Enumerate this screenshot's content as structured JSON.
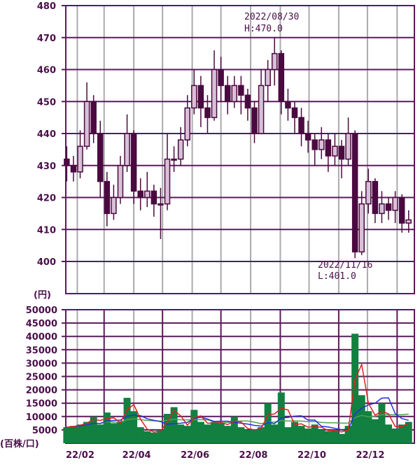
{
  "chart_data": [
    {
      "type": "candlestick",
      "ylabel": "(円)",
      "ylim": [
        390,
        480
      ],
      "y_ticks": [
        "400",
        "410",
        "420",
        "430",
        "440",
        "450",
        "460",
        "470",
        "480"
      ],
      "grid": true,
      "colors": {
        "grid_h": "#5a1a5a",
        "grid_v": "#aaaaaa",
        "candle": "#4a0a40",
        "candle_up_fill": "#d8c0d6"
      },
      "dates": [
        "2022-01-21",
        "2022-01-28",
        "2022-02-04",
        "2022-02-11",
        "2022-02-18",
        "2022-02-25",
        "2022-03-04",
        "2022-03-11",
        "2022-03-18",
        "2022-03-25",
        "2022-04-01",
        "2022-04-08",
        "2022-04-15",
        "2022-04-22",
        "2022-04-29",
        "2022-05-06",
        "2022-05-13",
        "2022-05-20",
        "2022-05-27",
        "2022-06-03",
        "2022-06-10",
        "2022-06-17",
        "2022-06-24",
        "2022-07-01",
        "2022-07-08",
        "2022-07-15",
        "2022-07-22",
        "2022-07-29",
        "2022-08-05",
        "2022-08-12",
        "2022-08-19",
        "2022-08-26",
        "2022-09-02",
        "2022-09-09",
        "2022-09-16",
        "2022-09-23",
        "2022-09-30",
        "2022-10-07",
        "2022-10-14",
        "2022-10-21",
        "2022-10-28",
        "2022-11-04",
        "2022-11-11",
        "2022-11-18",
        "2022-11-25",
        "2022-12-02",
        "2022-12-09",
        "2022-12-16",
        "2022-12-23",
        "2022-12-30",
        "2023-01-06",
        "2023-01-13"
      ],
      "open": [
        432,
        430,
        428,
        436,
        450,
        440,
        425,
        415,
        420,
        430,
        440,
        422,
        420,
        422,
        418,
        418,
        432,
        432,
        438,
        448,
        455,
        448,
        445,
        460,
        455,
        450,
        455,
        452,
        448,
        440,
        455,
        460,
        465,
        450,
        448,
        445,
        440,
        438,
        435,
        438,
        433,
        436,
        432,
        440,
        403,
        418,
        425,
        415,
        418,
        416,
        420,
        412
      ],
      "high": [
        436,
        433,
        441,
        456,
        452,
        444,
        428,
        424,
        433,
        446,
        441,
        426,
        428,
        424,
        423,
        440,
        436,
        442,
        452,
        460,
        458,
        452,
        466,
        464,
        458,
        458,
        458,
        454,
        450,
        460,
        463,
        470,
        466,
        454,
        450,
        448,
        444,
        440,
        442,
        440,
        440,
        438,
        445,
        441,
        422,
        429,
        426,
        422,
        420,
        422,
        421,
        416
      ],
      "low": [
        425,
        425,
        426,
        435,
        437,
        420,
        411,
        413,
        418,
        428,
        418,
        416,
        417,
        414,
        407,
        416,
        428,
        430,
        436,
        446,
        442,
        440,
        444,
        450,
        446,
        448,
        446,
        444,
        437,
        440,
        450,
        455,
        446,
        444,
        440,
        436,
        434,
        430,
        432,
        428,
        430,
        426,
        430,
        401,
        402,
        415,
        412,
        412,
        413,
        412,
        409,
        409
      ],
      "close": [
        430,
        428,
        436,
        450,
        440,
        425,
        415,
        420,
        430,
        440,
        422,
        420,
        422,
        418,
        418,
        432,
        432,
        438,
        448,
        455,
        448,
        445,
        460,
        455,
        450,
        455,
        452,
        448,
        440,
        455,
        460,
        465,
        450,
        448,
        445,
        440,
        438,
        435,
        438,
        433,
        436,
        432,
        440,
        403,
        418,
        425,
        415,
        418,
        416,
        420,
        412,
        413
      ],
      "annotations": [
        {
          "date": "2022/08/30",
          "label": "H:470.0"
        },
        {
          "date": "2022/11/16",
          "label": "L:401.0"
        }
      ]
    },
    {
      "type": "bar",
      "ylabel": "(百株/口)",
      "ylim": [
        0,
        50000
      ],
      "y_ticks": [
        "5000",
        "10000",
        "15000",
        "20000",
        "25000",
        "30000",
        "35000",
        "40000",
        "45000",
        "50000"
      ],
      "x_ticks": [
        "22/02",
        "22/04",
        "22/06",
        "22/08",
        "22/10",
        "22/12"
      ],
      "grid": true,
      "colors": {
        "bar": "#118040",
        "ma_short": "#e02020",
        "ma_mid": "#2030e0",
        "ma_long": "#50a050"
      },
      "volume": [
        6000,
        6500,
        7000,
        8000,
        10000,
        7000,
        11500,
        7500,
        8000,
        17000,
        12000,
        6000,
        4500,
        4000,
        5000,
        11000,
        13500,
        7000,
        6500,
        12500,
        8000,
        7000,
        8000,
        7500,
        6500,
        10000,
        6000,
        5000,
        5000,
        6000,
        15000,
        7000,
        19000,
        6000,
        8000,
        6500,
        5500,
        7000,
        5000,
        4500,
        5000,
        3500,
        6500,
        41000,
        18000,
        12000,
        9000,
        15000,
        7000,
        5500,
        7000,
        8000
      ]
    }
  ]
}
